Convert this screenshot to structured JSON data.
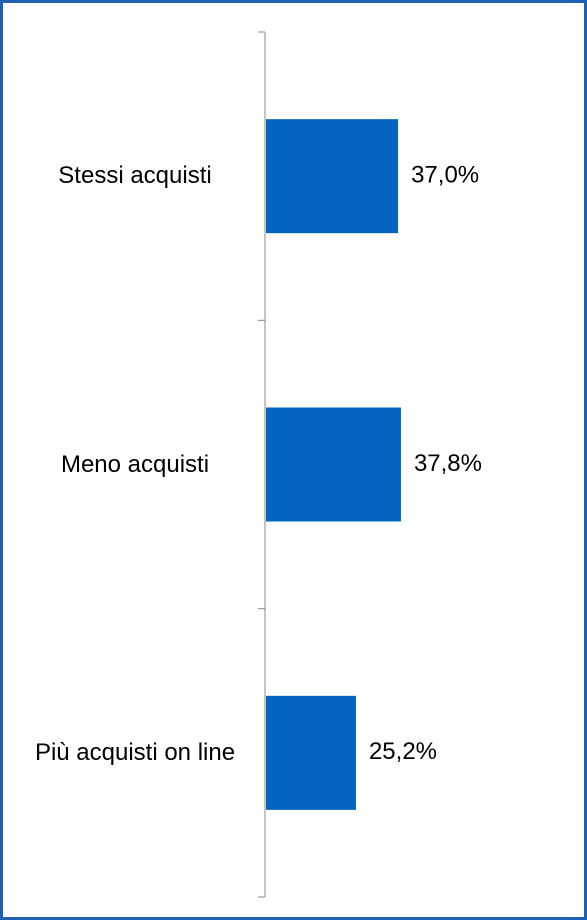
{
  "chart_data": {
    "type": "bar",
    "orientation": "horizontal",
    "categories": [
      "Stessi acquisti",
      "Meno acquisti",
      "Più acquisti on line"
    ],
    "values": [
      37.0,
      37.8,
      25.2
    ],
    "value_labels": [
      "37,0%",
      "37,8%",
      "25,2%"
    ],
    "color": "#0563c1"
  }
}
